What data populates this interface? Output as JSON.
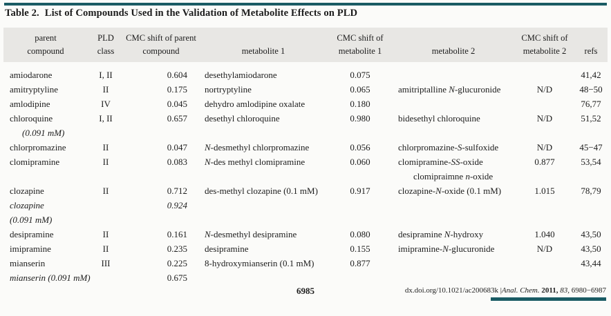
{
  "colors": {
    "accent": "#1a5b64",
    "band": "#e8e7e4"
  },
  "title": {
    "label": "Table 2.",
    "text": "List of Compounds Used in the Validation of Metabolite Effects on PLD"
  },
  "table": {
    "header_rows": [
      [
        "parent",
        "PLD",
        "CMC shift of parent",
        "",
        "CMC shift of",
        "",
        "CMC shift of",
        ""
      ],
      [
        "compound",
        "class",
        "compound",
        "metabolite 1",
        "metabolite 1",
        "metabolite 2",
        "metabolite 2",
        "refs"
      ]
    ],
    "rows": [
      {
        "cells": [
          "amiodarone",
          "I, II",
          "0.604",
          "desethylamiodarone",
          "0.075",
          "",
          "",
          "41,42"
        ]
      },
      {
        "cells": [
          "amitryptyline",
          "II",
          "0.175",
          "nortryptyline",
          "0.065",
          "amitriptalline N-glucuronide",
          "N/D",
          "48−50"
        ]
      },
      {
        "cells": [
          "amlodipine",
          "IV",
          "0.045",
          "dehydro amlodipine oxalate",
          "0.180",
          "",
          "",
          "76,77"
        ]
      },
      {
        "cells": [
          "chloroquine",
          "I, II",
          "0.657",
          "desethyl chloroquine",
          "0.980",
          "bidesethyl chloroquine",
          "N/D",
          "51,52"
        ]
      },
      {
        "cells": [
          "(0.091 mM)",
          "",
          "",
          "",
          "",
          "",
          "",
          ""
        ],
        "style": {
          "0": "it indent"
        }
      },
      {
        "cells": [
          "chlorpromazine",
          "II",
          "0.047",
          "N-desmethyl chlorpromazine",
          "0.056",
          "chlorpromazine-S-sulfoxide",
          "N/D",
          "45−47"
        ]
      },
      {
        "cells": [
          "clomipramine",
          "II",
          "0.083",
          "N-des methyl clomipramine",
          "0.060",
          "clomipramine-SS-oxide",
          "0.877",
          "53,54"
        ]
      },
      {
        "cells": [
          "",
          "",
          "",
          "",
          "",
          "clomipraimne n-oxide",
          "",
          ""
        ],
        "style": {
          "5": "indent2"
        }
      },
      {
        "cells": [
          "clozapine",
          "II",
          "0.712",
          "des-methyl clozapine (0.1 mM)",
          "0.917",
          "clozapine-N-oxide (0.1 mM)",
          "1.015",
          "78,79"
        ]
      },
      {
        "cells": [
          "clozapine",
          "",
          "0.924",
          "",
          "",
          "",
          "",
          ""
        ],
        "style": {
          "0": "it",
          "2": "it"
        }
      },
      {
        "cells": [
          "(0.091 mM)",
          "",
          "",
          "",
          "",
          "",
          "",
          ""
        ],
        "style": {
          "0": "it"
        }
      },
      {
        "cells": [
          "desipramine",
          "II",
          "0.161",
          "N-desmethyl desipramine",
          "0.080",
          "desipramine N-hydroxy",
          "1.040",
          "43,50"
        ]
      },
      {
        "cells": [
          "imipramine",
          "II",
          "0.235",
          "desipramine",
          "0.155",
          "imipramine-N-glucuronide",
          "N/D",
          "43,50"
        ]
      },
      {
        "cells": [
          "mianserin",
          "III",
          "0.225",
          "8-hydroxymianserin (0.1 mM)",
          "0.877",
          "",
          "",
          "43,44"
        ]
      },
      {
        "cells": [
          "mianserin (0.091 mM)",
          "",
          "0.675",
          "",
          "",
          "",
          "",
          ""
        ],
        "style": {
          "0": "it"
        }
      }
    ]
  },
  "footer": {
    "page_number": "6985",
    "doi": "dx.doi.org/10.1021/ac200683k",
    "separator": " |",
    "journal": "Anal. Chem.",
    "year": "2011,",
    "volume": "83,",
    "pages": "6980−6987"
  }
}
